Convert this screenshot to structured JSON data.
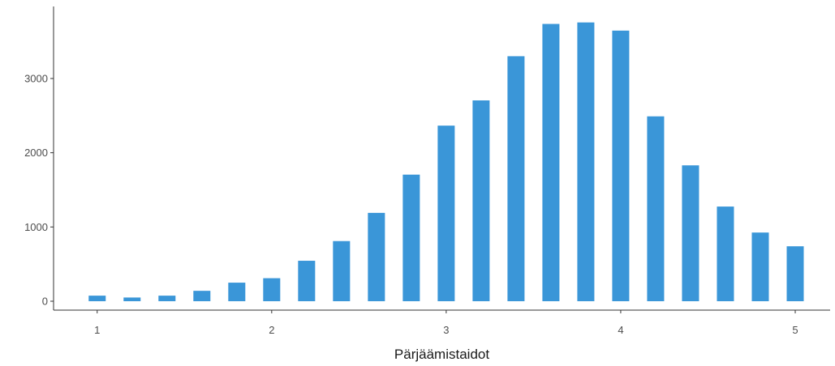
{
  "chart_data": {
    "type": "bar",
    "title": "",
    "xlabel": "Pärjäämistaidot",
    "ylabel": "",
    "x": [
      1.0,
      1.2,
      1.4,
      1.6,
      1.8,
      2.0,
      2.2,
      2.4,
      2.6,
      2.8,
      3.0,
      3.2,
      3.4,
      3.6,
      3.8,
      4.0,
      4.2,
      4.4,
      4.6,
      4.8,
      5.0
    ],
    "values": [
      75,
      50,
      75,
      140,
      250,
      310,
      545,
      810,
      1190,
      1705,
      2365,
      2705,
      3300,
      3735,
      3755,
      3645,
      2490,
      1830,
      1275,
      925,
      740
    ],
    "xlim": [
      0.75,
      5.2
    ],
    "ylim": [
      -120,
      3970
    ],
    "xticks": [
      1,
      2,
      3,
      4,
      5
    ],
    "xtick_labels": [
      "1",
      "2",
      "3",
      "4",
      "5"
    ],
    "yticks": [
      0,
      1000,
      2000,
      3000
    ],
    "ytick_labels": [
      "0",
      "1000",
      "2000",
      "3000"
    ],
    "bar_color": "#3a96d8",
    "grid": false,
    "legend": "none"
  }
}
